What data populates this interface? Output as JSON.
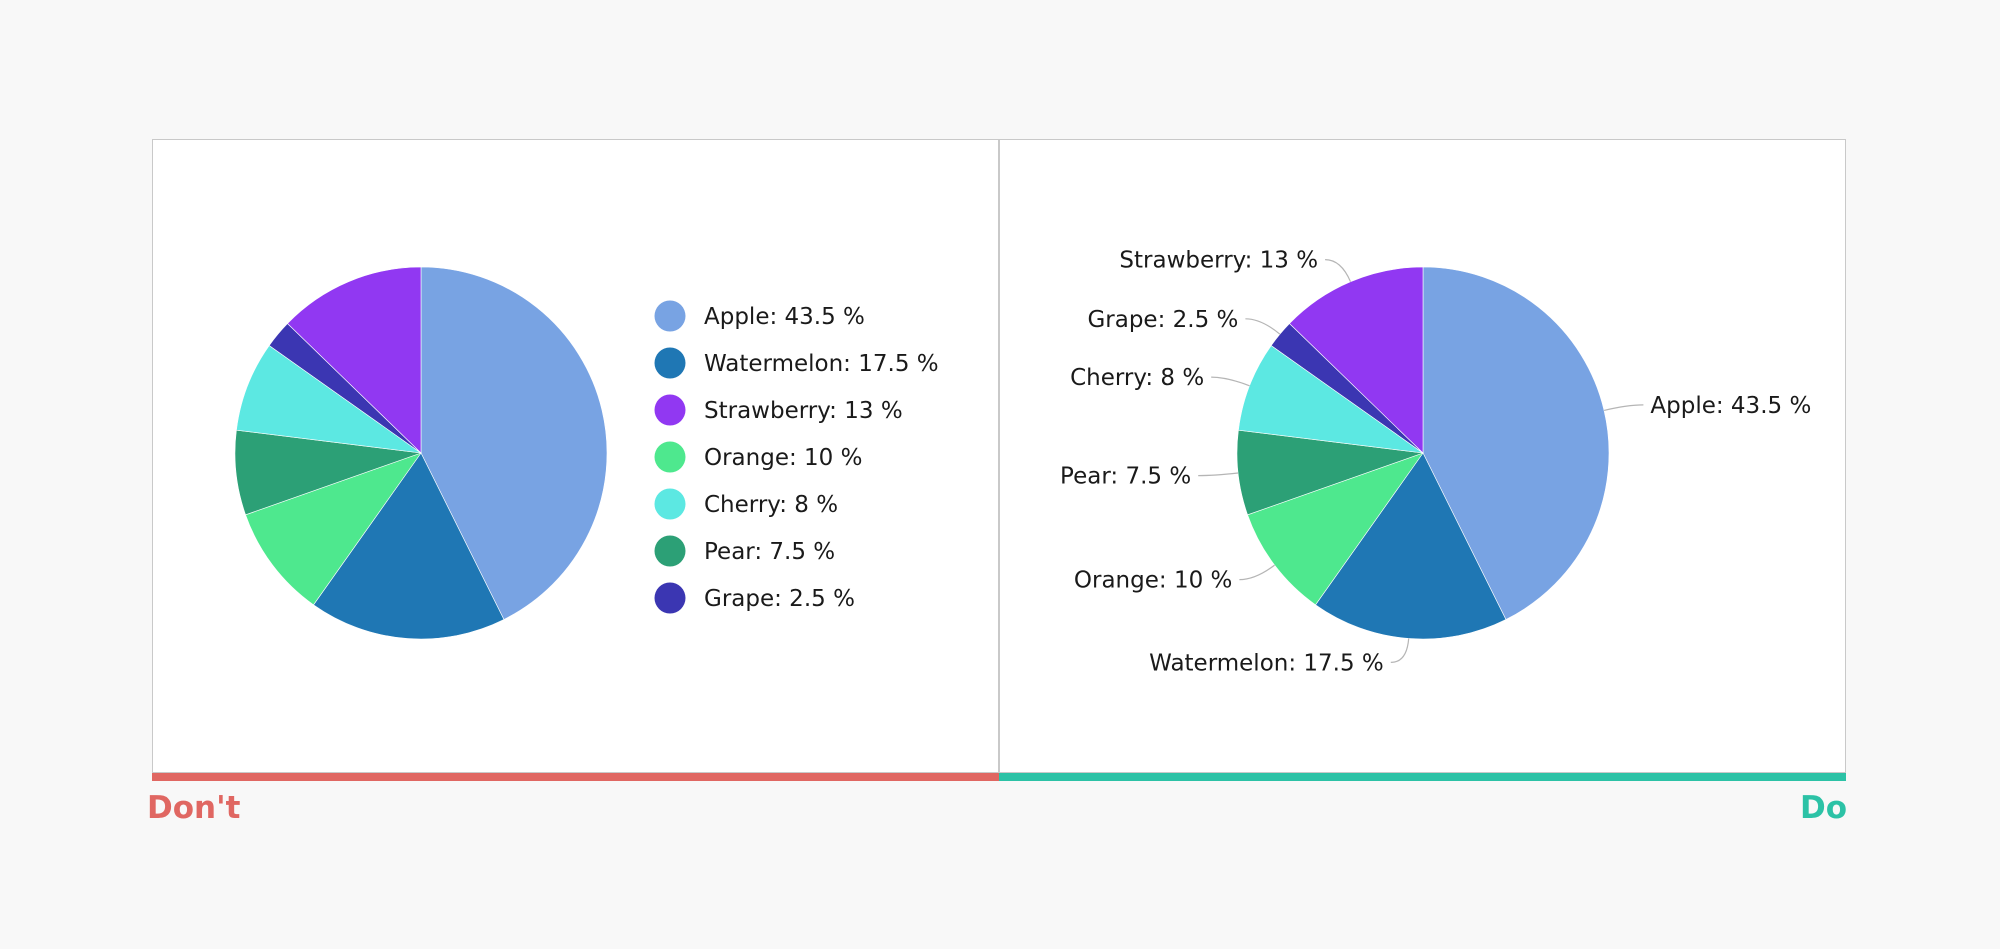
{
  "chart_data": [
    {
      "type": "pie",
      "panel": "dont",
      "slices": [
        {
          "label": "Apple: 43.5 %",
          "name": "Apple",
          "value": 43.5,
          "color": "#78a3e3"
        },
        {
          "label": "Watermelon: 17.5 %",
          "name": "Watermelon",
          "value": 17.5,
          "color": "#1f77b4"
        },
        {
          "label": "Orange: 10 %",
          "name": "Orange",
          "value": 10,
          "color": "#4ee88e"
        },
        {
          "label": "Pear: 7.5 %",
          "name": "Pear",
          "value": 7.5,
          "color": "#2ca076"
        },
        {
          "label": "Cherry: 8 %",
          "name": "Cherry",
          "value": 8,
          "color": "#5ce8e2"
        },
        {
          "label": "Grape: 2.5 %",
          "name": "Grape",
          "value": 2.5,
          "color": "#3b36b2"
        },
        {
          "label": "Strawberry: 13 %",
          "name": "Strawberry",
          "value": 13,
          "color": "#9138f2"
        }
      ],
      "legend": {
        "placement": "right",
        "order": [
          "Apple: 43.5 %",
          "Watermelon: 17.5 %",
          "Strawberry: 13 %",
          "Orange: 10 %",
          "Cherry: 8 %",
          "Pear: 7.5 %",
          "Grape: 2.5 %"
        ]
      }
    },
    {
      "type": "pie",
      "panel": "do",
      "slices": [
        {
          "label": "Apple: 43.5 %",
          "name": "Apple",
          "value": 43.5,
          "color": "#78a3e3"
        },
        {
          "label": "Watermelon: 17.5 %",
          "name": "Watermelon",
          "value": 17.5,
          "color": "#1f77b4"
        },
        {
          "label": "Orange: 10 %",
          "name": "Orange",
          "value": 10,
          "color": "#4ee88e"
        },
        {
          "label": "Pear: 7.5 %",
          "name": "Pear",
          "value": 7.5,
          "color": "#2ca076"
        },
        {
          "label": "Cherry: 8 %",
          "name": "Cherry",
          "value": 8,
          "color": "#5ce8e2"
        },
        {
          "label": "Grape: 2.5 %",
          "name": "Grape",
          "value": 2.5,
          "color": "#3b36b2"
        },
        {
          "label": "Strawberry: 13 %",
          "name": "Strawberry",
          "value": 13,
          "color": "#9138f2"
        }
      ],
      "labels": "direct"
    }
  ],
  "verdicts": {
    "dont": {
      "text": "Don't",
      "color": "#e06762"
    },
    "do": {
      "text": "Do",
      "color": "#2cc2a6"
    }
  }
}
